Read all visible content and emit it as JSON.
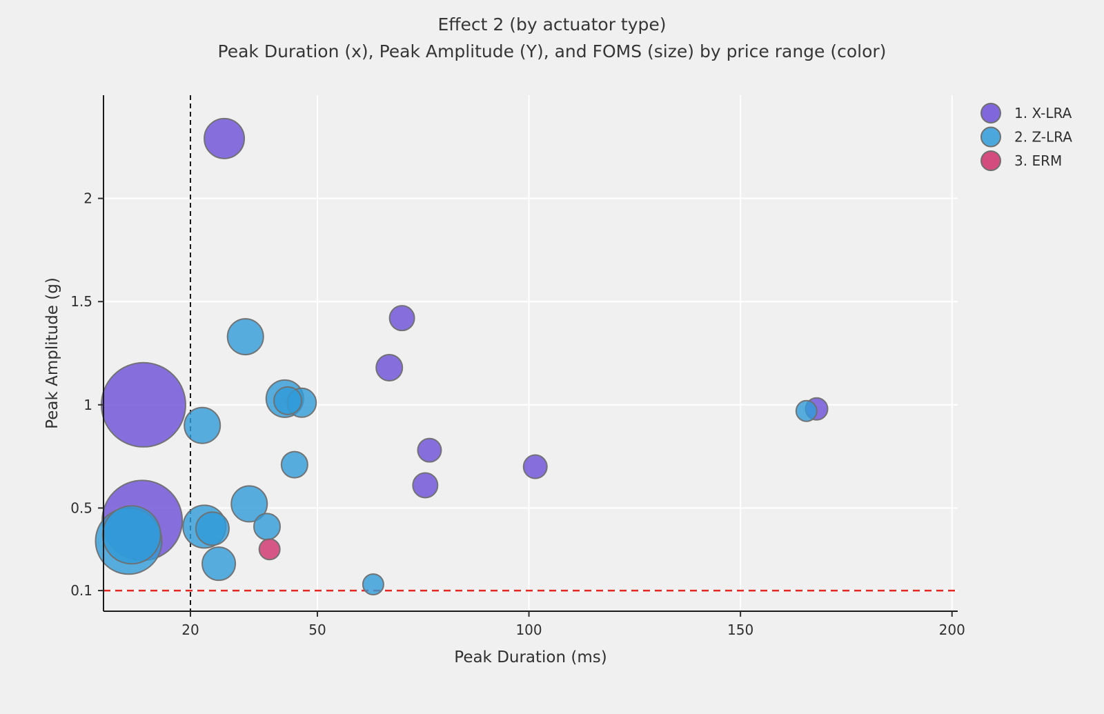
{
  "header": {
    "title": "Effect 2 (by actuator type)",
    "subtitle": "Peak Duration (x), Peak Amplitude (Y), and FOMS (size) by price range (color)"
  },
  "chart_data": {
    "type": "scatter",
    "subtype": "bubble",
    "title": "Effect 2 (by actuator type)",
    "subtitle": "Peak Duration (x), Peak Amplitude (Y), and FOMS (size) by price range (color)",
    "xlabel": "Peak Duration (ms)",
    "ylabel": "Peak Amplitude (g)",
    "xlim": [
      -0.55,
      201.35
    ],
    "ylim": [
      0,
      2.5
    ],
    "xticks": {
      "values": [
        20,
        50,
        100,
        150,
        200
      ],
      "labels": [
        "20",
        "50",
        "100",
        "150",
        "200"
      ]
    },
    "yticks": {
      "values": [
        0.1,
        0.5,
        1,
        1.5,
        2
      ],
      "labels": [
        "0.1",
        "0.5",
        "1",
        "1.5",
        "2"
      ]
    },
    "grid": true,
    "gridline_color": "#ffffff",
    "background_color": "#f0f0f0",
    "marker_stroke_color": "#6f6f6f",
    "marker_fill_opacity": 0.8,
    "legend_position": "top-right",
    "size_encoding": "bubble radius encodes FOMS",
    "reference_lines": [
      {
        "axis": "x",
        "value": 20,
        "style": "dashed",
        "color": "#1a1a1a",
        "dash": "7 5"
      },
      {
        "axis": "y",
        "value": 0.1,
        "style": "dashed",
        "color": "#e8251f",
        "dash": "10 7"
      }
    ],
    "series": [
      {
        "name": "1. X-LRA",
        "color": "#6c4fd8",
        "points": [
          {
            "x": 28.0,
            "y": 2.29,
            "r": 29
          },
          {
            "x": 8.9,
            "y": 1.0,
            "r": 61
          },
          {
            "x": 8.6,
            "y": 0.44,
            "r": 58
          },
          {
            "x": 70.0,
            "y": 1.42,
            "r": 18
          },
          {
            "x": 67.0,
            "y": 1.18,
            "r": 19
          },
          {
            "x": 76.5,
            "y": 0.78,
            "r": 17
          },
          {
            "x": 75.5,
            "y": 0.61,
            "r": 18
          },
          {
            "x": 101.5,
            "y": 0.7,
            "r": 17
          },
          {
            "x": 168.0,
            "y": 0.98,
            "r": 16
          }
        ]
      },
      {
        "name": "2. Z-LRA",
        "color": "#2f9bd8",
        "points": [
          {
            "x": 5.4,
            "y": 0.34,
            "r": 48
          },
          {
            "x": 6.1,
            "y": 0.37,
            "r": 42
          },
          {
            "x": 22.8,
            "y": 0.9,
            "r": 26
          },
          {
            "x": 33.0,
            "y": 1.33,
            "r": 26
          },
          {
            "x": 42.3,
            "y": 1.03,
            "r": 27
          },
          {
            "x": 46.3,
            "y": 1.01,
            "r": 21
          },
          {
            "x": 43.0,
            "y": 1.02,
            "r": 20
          },
          {
            "x": 44.6,
            "y": 0.71,
            "r": 19
          },
          {
            "x": 33.9,
            "y": 0.52,
            "r": 26
          },
          {
            "x": 38.1,
            "y": 0.41,
            "r": 19
          },
          {
            "x": 23.3,
            "y": 0.41,
            "r": 31
          },
          {
            "x": 25.2,
            "y": 0.4,
            "r": 24
          },
          {
            "x": 26.7,
            "y": 0.23,
            "r": 24
          },
          {
            "x": 63.2,
            "y": 0.13,
            "r": 15
          },
          {
            "x": 165.6,
            "y": 0.97,
            "r": 15
          }
        ]
      },
      {
        "name": "3. ERM",
        "color": "#cf2f6a",
        "points": [
          {
            "x": 38.7,
            "y": 0.3,
            "r": 15
          }
        ]
      }
    ],
    "legend": [
      "1. X-LRA",
      "2. Z-LRA",
      "3. ERM"
    ]
  }
}
